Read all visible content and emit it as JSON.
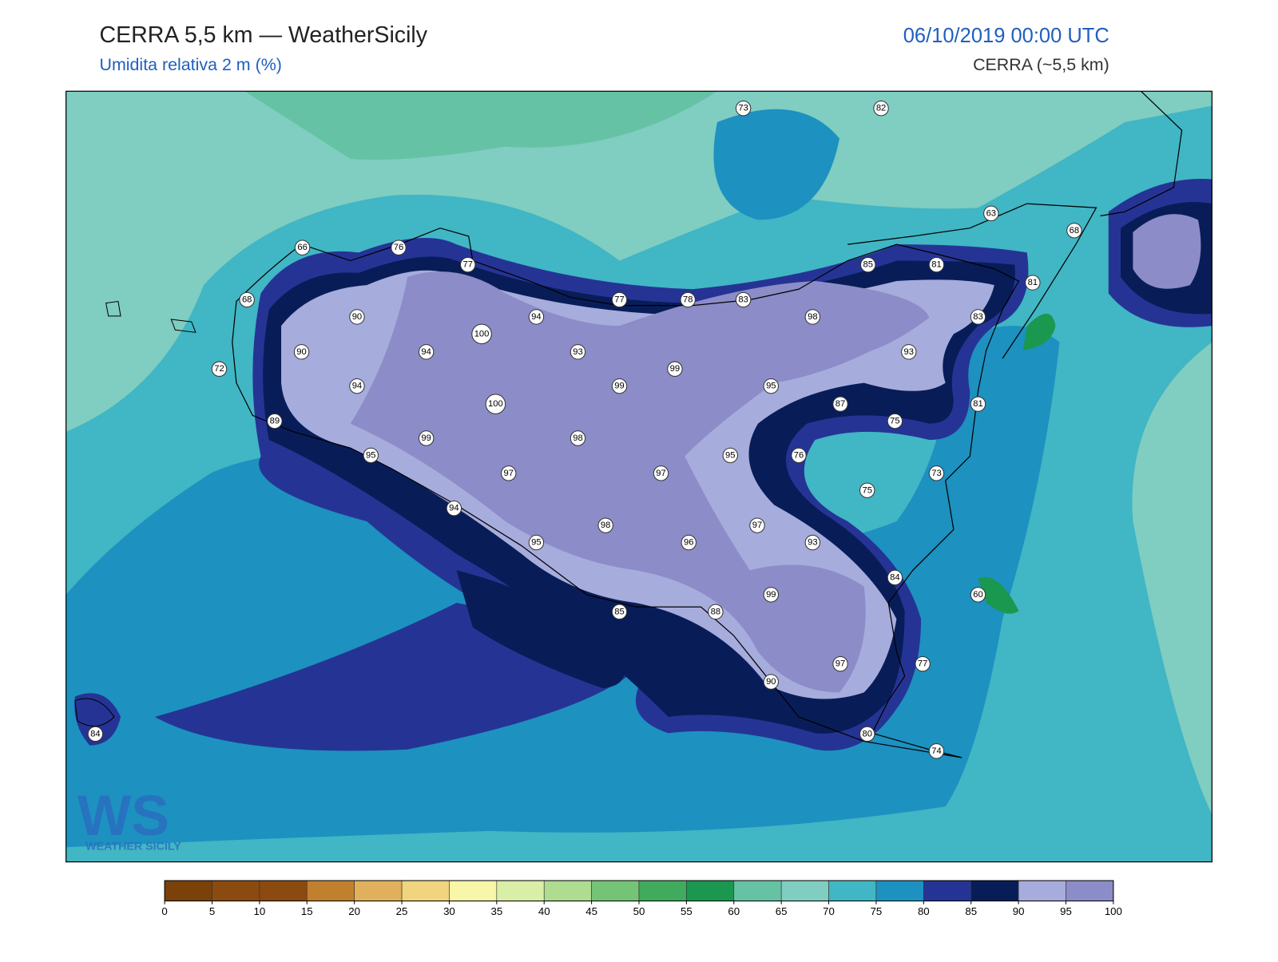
{
  "header": {
    "title": "CERRA 5,5 km — WeatherSicily",
    "subtitle": "Umidita relativa 2 m (%)",
    "date": "06/10/2019 00:00 UTC",
    "model": "CERRA (~5,5 km)"
  },
  "logo": {
    "text": "WS",
    "caption": "WEATHER SICILY"
  },
  "colorbar": {
    "ticks": [
      0,
      5,
      10,
      15,
      20,
      25,
      30,
      35,
      40,
      45,
      50,
      55,
      60,
      65,
      70,
      75,
      80,
      85,
      90,
      95,
      100
    ],
    "colors": [
      "#7a4109",
      "#8b4a10",
      "#8b4a10",
      "#c1802e",
      "#e0b05c",
      "#f0d47e",
      "#f7f6a9",
      "#d9eea6",
      "#aedc90",
      "#74c476",
      "#41ab5d",
      "#1a9850",
      "#66c2a4",
      "#80cdc1",
      "#41b6c4",
      "#1d91c0",
      "#253494",
      "#081d58",
      "#a6acdc",
      "#8c8cc8"
    ]
  },
  "stations": [
    73,
    82,
    63,
    68,
    66,
    76,
    77,
    85,
    81,
    81,
    68,
    77,
    78,
    83,
    90,
    94,
    100,
    98,
    83,
    90,
    94,
    93,
    99,
    93,
    72,
    94,
    99,
    95,
    100,
    87,
    81,
    89,
    75,
    99,
    98,
    95,
    95,
    76,
    97,
    97,
    73,
    75,
    94,
    98,
    97,
    95,
    96,
    93,
    84,
    60,
    99,
    85,
    88,
    77,
    97,
    90,
    84,
    80,
    74
  ]
}
